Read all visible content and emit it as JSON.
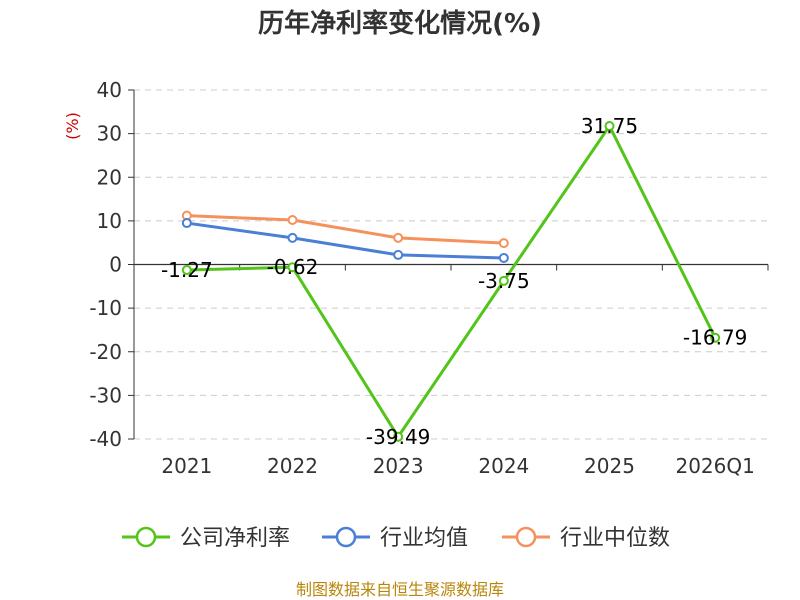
{
  "chart_data": {
    "type": "line",
    "title": "历年净利率变化情况(%)",
    "ylabel": "(%)",
    "categories": [
      "2021",
      "2022",
      "2023",
      "2024",
      "2025",
      "2026Q1"
    ],
    "ylim": [
      -40,
      40
    ],
    "yticks": [
      "40",
      "30",
      "20",
      "10",
      "0",
      "-10",
      "-20",
      "-30",
      "-40"
    ],
    "ytick_values": [
      40,
      30,
      20,
      10,
      0,
      -10,
      -20,
      -30,
      -40
    ],
    "grid": true,
    "legend_position": "bottom",
    "series": [
      {
        "name": "公司净利率",
        "color": "#52c41a",
        "values": [
          -1.27,
          -0.62,
          -39.49,
          -3.75,
          31.75,
          -16.79
        ],
        "labels": [
          "-1.27",
          "-0.62",
          "-39.49",
          "-3.75",
          "31.75",
          "-16.79"
        ]
      },
      {
        "name": "行业均值",
        "color": "#4a7fd6",
        "values": [
          9.5,
          6.1,
          2.2,
          1.5,
          null,
          null
        ]
      },
      {
        "name": "行业中位数",
        "color": "#f5915a",
        "values": [
          11.2,
          10.2,
          6.1,
          4.9,
          null,
          null
        ]
      }
    ]
  },
  "source": "制图数据来自恒生聚源数据库"
}
